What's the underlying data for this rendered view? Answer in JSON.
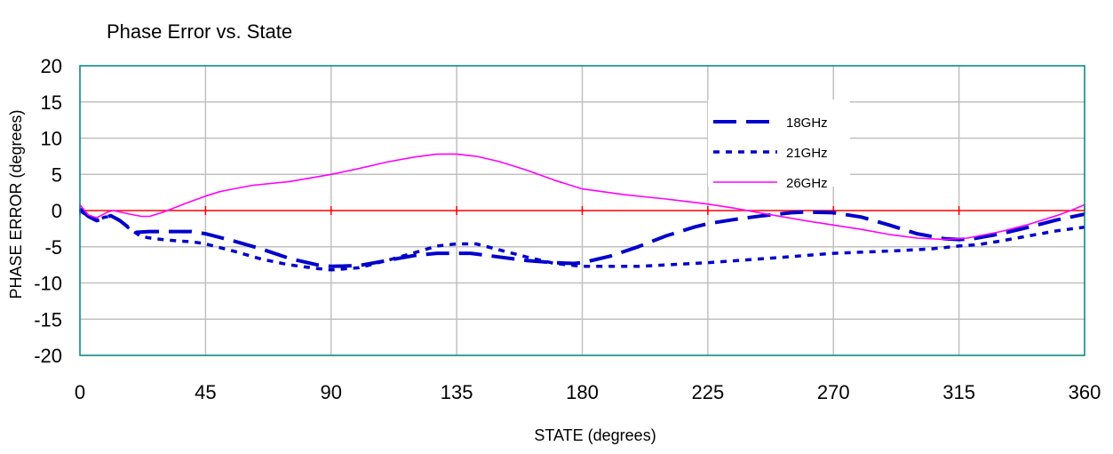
{
  "chart_data": {
    "type": "line",
    "title": "Phase Error vs. State",
    "xlabel": "STATE  (degrees)",
    "ylabel": "PHASE ERROR  (degrees)",
    "xlim": [
      0,
      360
    ],
    "ylim": [
      -20,
      20
    ],
    "xticks": [
      0,
      45,
      90,
      135,
      180,
      225,
      270,
      315,
      360
    ],
    "yticks": [
      20,
      15,
      10,
      5,
      0,
      -5,
      -10,
      -15,
      -20
    ],
    "grid": true,
    "legend_position": "top-right",
    "reference_line": {
      "y": 0,
      "color": "#ff0000"
    },
    "series": [
      {
        "name": "18GHz",
        "color": "#0000cc",
        "style": "long-dash",
        "points": [
          [
            0,
            0.2
          ],
          [
            3,
            -0.8
          ],
          [
            6,
            -1.4
          ],
          [
            9,
            -1.0
          ],
          [
            11,
            -0.7
          ],
          [
            14,
            -1.3
          ],
          [
            17,
            -2.2
          ],
          [
            20,
            -3.0
          ],
          [
            25,
            -2.9
          ],
          [
            35,
            -2.9
          ],
          [
            40,
            -2.9
          ],
          [
            45,
            -3.2
          ],
          [
            55,
            -4.2
          ],
          [
            65,
            -5.3
          ],
          [
            75,
            -6.6
          ],
          [
            85,
            -7.5
          ],
          [
            90,
            -7.7
          ],
          [
            100,
            -7.6
          ],
          [
            110,
            -6.9
          ],
          [
            120,
            -6.2
          ],
          [
            128,
            -5.9
          ],
          [
            135,
            -5.9
          ],
          [
            140,
            -5.9
          ],
          [
            150,
            -6.4
          ],
          [
            160,
            -6.9
          ],
          [
            170,
            -7.2
          ],
          [
            177,
            -7.3
          ],
          [
            180,
            -7.2
          ],
          [
            190,
            -6.3
          ],
          [
            200,
            -5.0
          ],
          [
            210,
            -3.5
          ],
          [
            220,
            -2.3
          ],
          [
            225,
            -1.8
          ],
          [
            235,
            -1.2
          ],
          [
            245,
            -0.7
          ],
          [
            255,
            -0.3
          ],
          [
            260,
            -0.2
          ],
          [
            270,
            -0.3
          ],
          [
            280,
            -0.9
          ],
          [
            290,
            -2.0
          ],
          [
            300,
            -3.2
          ],
          [
            310,
            -3.9
          ],
          [
            315,
            -4.0
          ],
          [
            320,
            -3.9
          ],
          [
            330,
            -3.2
          ],
          [
            340,
            -2.3
          ],
          [
            350,
            -1.3
          ],
          [
            360,
            -0.5
          ]
        ]
      },
      {
        "name": "21GHz",
        "color": "#0000cc",
        "style": "short-dash",
        "points": [
          [
            0,
            0.0
          ],
          [
            3,
            -0.8
          ],
          [
            6,
            -1.3
          ],
          [
            9,
            -0.9
          ],
          [
            12,
            -0.9
          ],
          [
            15,
            -1.6
          ],
          [
            18,
            -2.6
          ],
          [
            22,
            -3.6
          ],
          [
            27,
            -3.9
          ],
          [
            35,
            -4.2
          ],
          [
            40,
            -4.3
          ],
          [
            45,
            -4.6
          ],
          [
            55,
            -5.6
          ],
          [
            65,
            -6.7
          ],
          [
            75,
            -7.5
          ],
          [
            85,
            -8.0
          ],
          [
            90,
            -8.2
          ],
          [
            100,
            -7.9
          ],
          [
            110,
            -6.9
          ],
          [
            120,
            -5.8
          ],
          [
            128,
            -4.9
          ],
          [
            135,
            -4.6
          ],
          [
            142,
            -4.6
          ],
          [
            150,
            -5.4
          ],
          [
            160,
            -6.4
          ],
          [
            170,
            -7.3
          ],
          [
            180,
            -7.7
          ],
          [
            200,
            -7.7
          ],
          [
            225,
            -7.2
          ],
          [
            250,
            -6.5
          ],
          [
            270,
            -5.9
          ],
          [
            290,
            -5.6
          ],
          [
            305,
            -5.3
          ],
          [
            315,
            -4.9
          ],
          [
            322,
            -4.7
          ],
          [
            330,
            -4.2
          ],
          [
            340,
            -3.5
          ],
          [
            350,
            -2.8
          ],
          [
            360,
            -2.3
          ]
        ]
      },
      {
        "name": "26GHz",
        "color": "#ff00ff",
        "style": "solid",
        "points": [
          [
            0,
            0.8
          ],
          [
            3,
            -0.6
          ],
          [
            6,
            -1.0
          ],
          [
            10,
            -0.2
          ],
          [
            12,
            0.0
          ],
          [
            18,
            -0.5
          ],
          [
            22,
            -0.8
          ],
          [
            25,
            -0.8
          ],
          [
            30,
            -0.2
          ],
          [
            38,
            1.0
          ],
          [
            45,
            2.0
          ],
          [
            50,
            2.6
          ],
          [
            55,
            3.0
          ],
          [
            62,
            3.5
          ],
          [
            75,
            4.0
          ],
          [
            90,
            5.0
          ],
          [
            100,
            5.8
          ],
          [
            110,
            6.7
          ],
          [
            120,
            7.4
          ],
          [
            128,
            7.8
          ],
          [
            135,
            7.8
          ],
          [
            142,
            7.5
          ],
          [
            150,
            6.8
          ],
          [
            160,
            5.6
          ],
          [
            170,
            4.2
          ],
          [
            180,
            3.0
          ],
          [
            195,
            2.2
          ],
          [
            210,
            1.6
          ],
          [
            225,
            0.9
          ],
          [
            235,
            0.3
          ],
          [
            245,
            -0.4
          ],
          [
            260,
            -1.4
          ],
          [
            270,
            -2.0
          ],
          [
            280,
            -2.6
          ],
          [
            290,
            -3.3
          ],
          [
            300,
            -3.8
          ],
          [
            310,
            -4.0
          ],
          [
            318,
            -3.8
          ],
          [
            330,
            -2.9
          ],
          [
            340,
            -1.9
          ],
          [
            350,
            -0.7
          ],
          [
            355,
            0.0
          ],
          [
            360,
            0.8
          ]
        ]
      }
    ]
  }
}
